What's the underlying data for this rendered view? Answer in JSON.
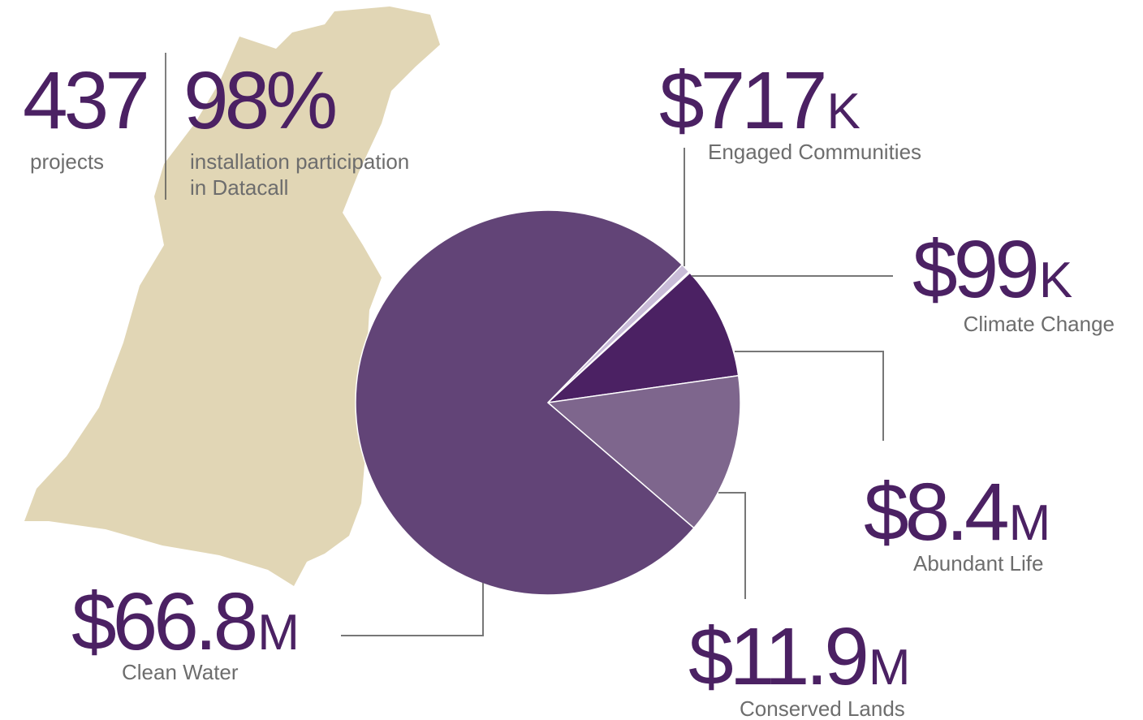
{
  "stats": [
    {
      "value": "437",
      "label": [
        "projects"
      ]
    },
    {
      "value": "98%",
      "label": [
        "installation participation",
        "in Datacall"
      ]
    }
  ],
  "chart_data": {
    "type": "pie",
    "categories": [
      "Engaged Communities",
      "Climate Change",
      "Abundant Life",
      "Conserved Lands",
      "Clean Water"
    ],
    "values": [
      717000,
      99000,
      8400000,
      11900000,
      66800000
    ],
    "value_labels": [
      "$717K",
      "$99K",
      "$8.4M",
      "$11.9M",
      "$66.8M"
    ],
    "colors": [
      "#c9bcd8",
      "#efe9f3",
      "#4b2163",
      "#7e668d",
      "#624477"
    ]
  }
}
